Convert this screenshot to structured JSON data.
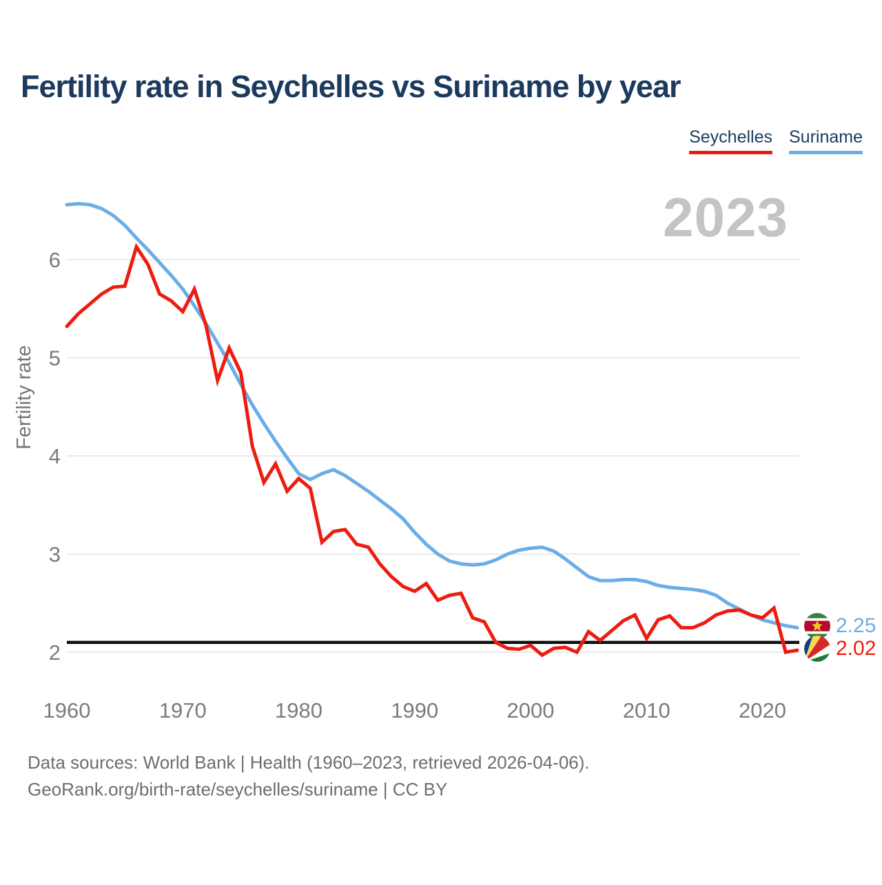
{
  "title": "Fertility rate in Seychelles vs Suriname by year",
  "watermark": "2023",
  "legend": [
    {
      "label": "Seychelles",
      "color": "#ee1c10"
    },
    {
      "label": "Suriname",
      "color": "#6bade6"
    }
  ],
  "end_labels": [
    {
      "series": "Suriname",
      "value": "2.25",
      "color": "#6bade6",
      "flag": "suriname-flag-icon"
    },
    {
      "series": "Seychelles",
      "value": "2.02",
      "color": "#ee1c10",
      "flag": "seychelles-flag-icon"
    }
  ],
  "source": {
    "line1": "Data sources: World Bank | Health (1960–2023, retrieved 2026-04-06).",
    "line2": "GeoRank.org/birth-rate/seychelles/suriname | CC BY"
  },
  "colors": {
    "seychelles": "#ee1c10",
    "suriname": "#6bade6",
    "title": "#1b3a5e",
    "grid": "#e9e9e9",
    "tick": "#7b7b7b",
    "axis_label": "#757575",
    "watermark": "#c4c4c4",
    "reference_line": "#0f0f0f"
  },
  "chart_data": {
    "type": "line",
    "title": "Fertility rate in Seychelles vs Suriname by year",
    "xlabel": "",
    "ylabel": "Fertility rate",
    "x_ticks": [
      1960,
      1970,
      1980,
      1990,
      2000,
      2010,
      2020
    ],
    "y_ticks": [
      2,
      3,
      4,
      5,
      6
    ],
    "xlim": [
      1960,
      2023
    ],
    "ylim": [
      1.75,
      6.85
    ],
    "grid": "horizontal-only",
    "legend_position": "top-right",
    "reference_line": {
      "value": 2.1
    },
    "years": [
      1960,
      1961,
      1962,
      1963,
      1964,
      1965,
      1966,
      1967,
      1968,
      1969,
      1970,
      1971,
      1972,
      1973,
      1974,
      1975,
      1976,
      1977,
      1978,
      1979,
      1980,
      1981,
      1982,
      1983,
      1984,
      1985,
      1986,
      1987,
      1988,
      1989,
      1990,
      1991,
      1992,
      1993,
      1994,
      1995,
      1996,
      1997,
      1998,
      1999,
      2000,
      2001,
      2002,
      2003,
      2004,
      2005,
      2006,
      2007,
      2008,
      2009,
      2010,
      2011,
      2012,
      2013,
      2014,
      2015,
      2016,
      2017,
      2018,
      2019,
      2020,
      2021,
      2022,
      2023
    ],
    "series": [
      {
        "name": "Seychelles",
        "color": "#ee1c10",
        "end_value": 2.02,
        "values": [
          5.32,
          5.45,
          5.55,
          5.65,
          5.72,
          5.73,
          6.13,
          5.95,
          5.65,
          5.58,
          5.47,
          5.7,
          5.33,
          4.77,
          5.1,
          4.85,
          4.1,
          3.73,
          3.92,
          3.64,
          3.77,
          3.67,
          3.12,
          3.23,
          3.25,
          3.1,
          3.07,
          2.9,
          2.77,
          2.67,
          2.62,
          2.7,
          2.53,
          2.58,
          2.6,
          2.35,
          2.31,
          2.1,
          2.04,
          2.03,
          2.07,
          1.97,
          2.04,
          2.05,
          2.0,
          2.21,
          2.12,
          2.22,
          2.32,
          2.38,
          2.14,
          2.33,
          2.37,
          2.25,
          2.25,
          2.3,
          2.38,
          2.42,
          2.43,
          2.38,
          2.35,
          2.45,
          2.0,
          2.02
        ]
      },
      {
        "name": "Suriname",
        "color": "#6bade6",
        "end_value": 2.25,
        "values": [
          6.56,
          6.57,
          6.56,
          6.52,
          6.45,
          6.35,
          6.22,
          6.1,
          5.97,
          5.84,
          5.7,
          5.53,
          5.35,
          5.15,
          4.95,
          4.73,
          4.52,
          4.33,
          4.15,
          3.98,
          3.82,
          3.76,
          3.82,
          3.86,
          3.8,
          3.72,
          3.64,
          3.55,
          3.46,
          3.36,
          3.22,
          3.1,
          3.0,
          2.93,
          2.9,
          2.89,
          2.9,
          2.94,
          3.0,
          3.04,
          3.06,
          3.07,
          3.03,
          2.95,
          2.86,
          2.77,
          2.73,
          2.73,
          2.74,
          2.74,
          2.72,
          2.68,
          2.66,
          2.65,
          2.64,
          2.62,
          2.58,
          2.5,
          2.44,
          2.38,
          2.33,
          2.3,
          2.27,
          2.25
        ]
      }
    ]
  }
}
